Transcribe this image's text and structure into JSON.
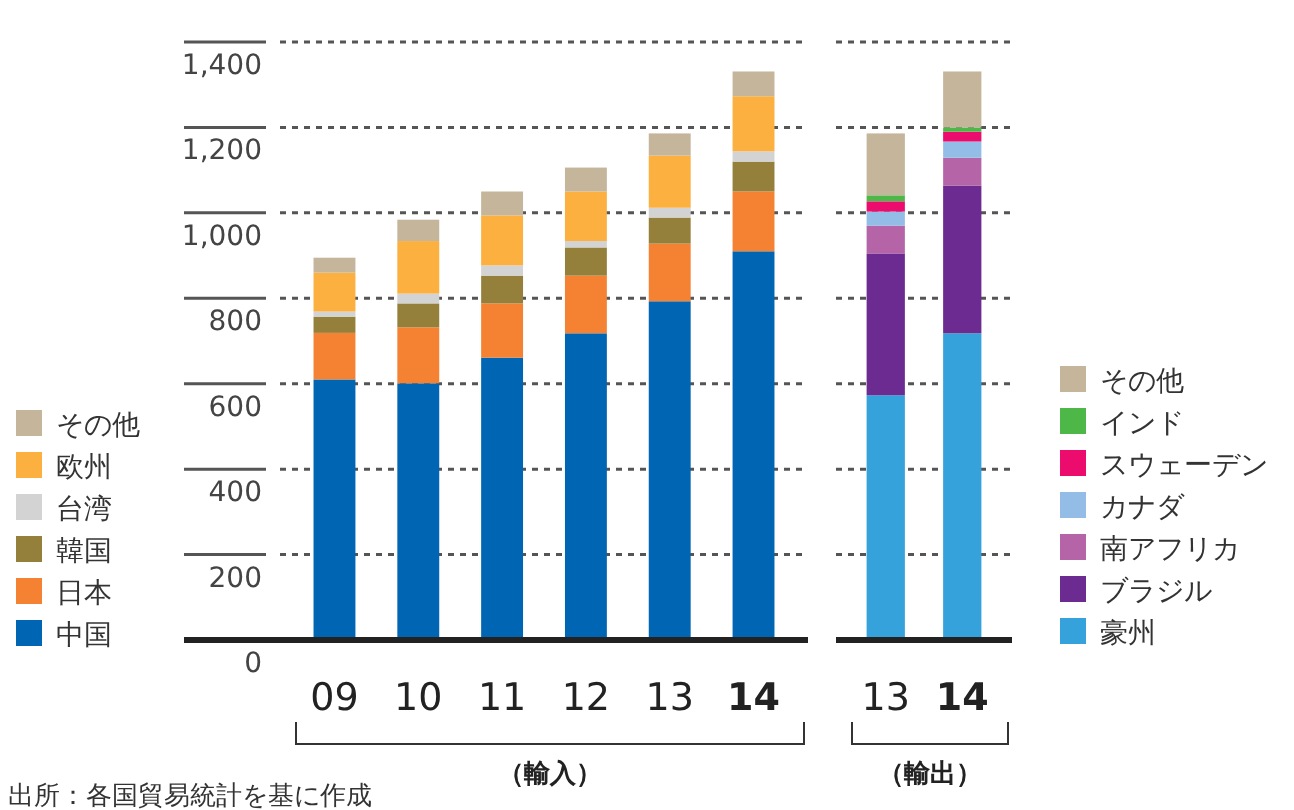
{
  "chart_data": [
    {
      "type": "bar",
      "stacked": true,
      "categories": [
        "09",
        "10",
        "11",
        "12",
        "13",
        "14"
      ],
      "xlabel": "（輸入）",
      "ylim": [
        0,
        1400
      ],
      "yticks": [
        0,
        200,
        400,
        600,
        800,
        {
          "value": 1000,
          "label": "1,000"
        },
        {
          "value": 1200,
          "label": "1,200"
        },
        {
          "value": 1400,
          "label": "1,400"
        }
      ],
      "grid": "y",
      "legend": "left",
      "annotations": [
        "出所：各国貿易統計を基に作成"
      ],
      "series": [
        {
          "name": "中国",
          "color": "#0066b3",
          "values": [
            610,
            601,
            661,
            718,
            793,
            910
          ]
        },
        {
          "name": "日本",
          "color": "#f58233",
          "values": [
            109,
            131,
            127,
            135,
            135,
            140
          ]
        },
        {
          "name": "韓国",
          "color": "#95803b",
          "values": [
            38,
            56,
            65,
            66,
            61,
            70
          ]
        },
        {
          "name": "台湾",
          "color": "#d3d3d3",
          "values": [
            12,
            23,
            24,
            15,
            23,
            24
          ]
        },
        {
          "name": "欧州",
          "color": "#fbb040",
          "values": [
            91,
            123,
            117,
            116,
            122,
            129
          ]
        },
        {
          "name": "その他",
          "color": "#c4b59b",
          "values": [
            35,
            50,
            56,
            56,
            52,
            58
          ]
        }
      ]
    },
    {
      "type": "bar",
      "stacked": true,
      "categories": [
        "13",
        "14"
      ],
      "xlabel": "（輸出）",
      "ylim": [
        0,
        1400
      ],
      "grid": "y",
      "legend": "right",
      "tick_labels": "x",
      "series": [
        {
          "name": "豪州",
          "color": "#35a2dc",
          "values": [
            573,
            718
          ]
        },
        {
          "name": "ブラジル",
          "color": "#6c2b90",
          "values": [
            332,
            346
          ]
        },
        {
          "name": "南アフリカ",
          "color": "#b565a7",
          "values": [
            65,
            65
          ]
        },
        {
          "name": "カナダ",
          "color": "#93bde6",
          "values": [
            33,
            38
          ]
        },
        {
          "name": "スウェーデン",
          "color": "#ec0c6d",
          "values": [
            24,
            23
          ]
        },
        {
          "name": "インド",
          "color": "#4db848",
          "values": [
            14,
            10
          ]
        },
        {
          "name": "その他",
          "color": "#c4b59b",
          "values": [
            145,
            131
          ]
        }
      ]
    }
  ]
}
